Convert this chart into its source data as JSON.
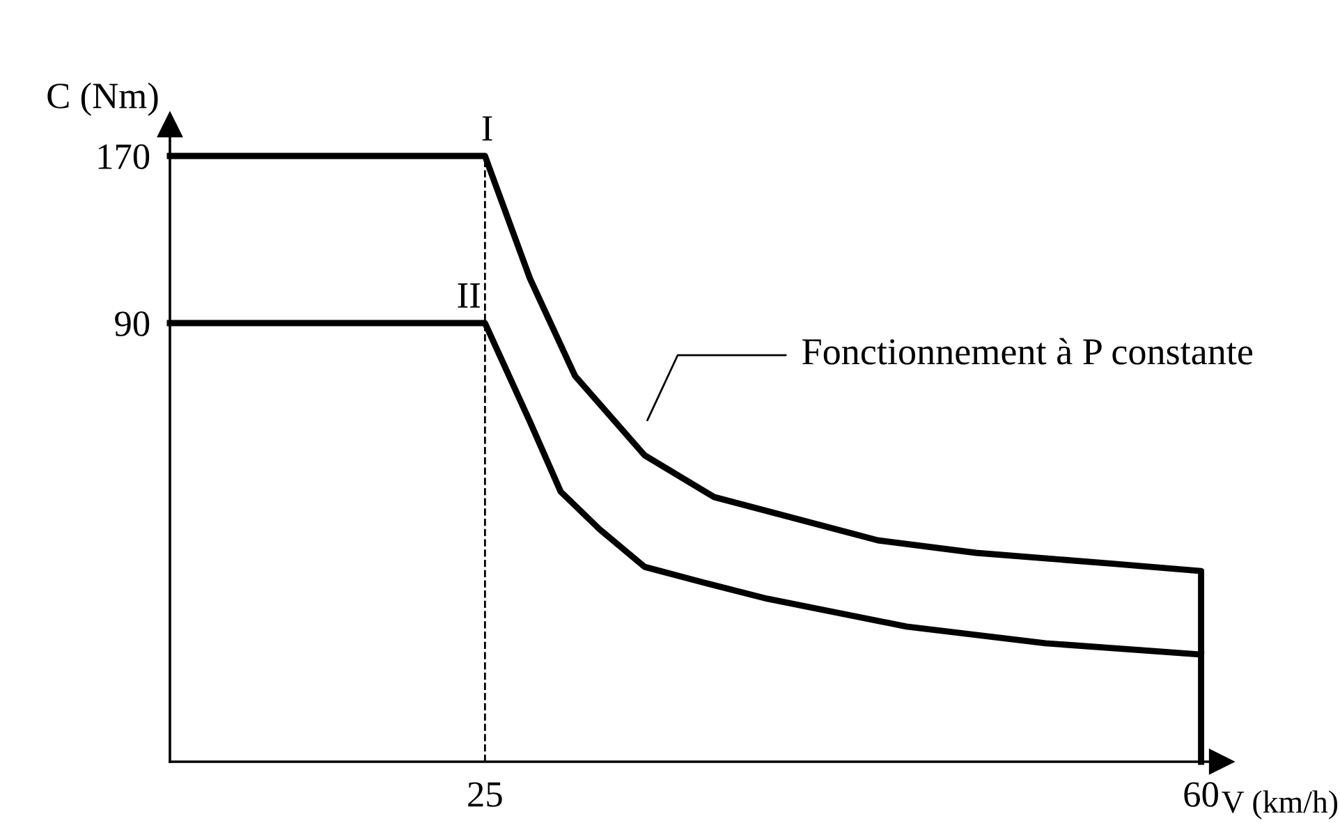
{
  "chart_data": {
    "type": "line",
    "xlabel": "V (km/h)",
    "ylabel": "C (Nm)",
    "xlim": [
      9.6,
      61
    ],
    "ylim": [
      -120,
      185
    ],
    "xticks": [
      25,
      60
    ],
    "yticks": [
      170,
      90
    ],
    "grid": false,
    "legend": false,
    "marker": "none",
    "line_style": "solid",
    "series": [
      {
        "name": "I",
        "color": "#000000",
        "x": [
          9.6,
          25,
          27.2,
          29.4,
          32.8,
          36.2,
          44.2,
          49.0,
          55.8,
          60,
          60
        ],
        "values": [
          170,
          170,
          111.3,
          64.7,
          26.7,
          6.7,
          -14,
          -20,
          -25.3,
          -28.7,
          -120
        ]
      },
      {
        "name": "II",
        "color": "#000000",
        "x": [
          9.6,
          25,
          27.2,
          28.7,
          30.6,
          32.8,
          35.6,
          38.8,
          45.6,
          52.4,
          60
        ],
        "values": [
          90,
          90,
          42.7,
          9.3,
          -8.7,
          -26.7,
          -34,
          -42,
          -55.3,
          -63.3,
          -68.7
        ]
      }
    ],
    "ref_lines": [
      {
        "axis": "x",
        "value": 25,
        "line_style": "dashed",
        "color": "#000000"
      }
    ],
    "annotations": [
      "Fonctionnement à P constante"
    ]
  }
}
